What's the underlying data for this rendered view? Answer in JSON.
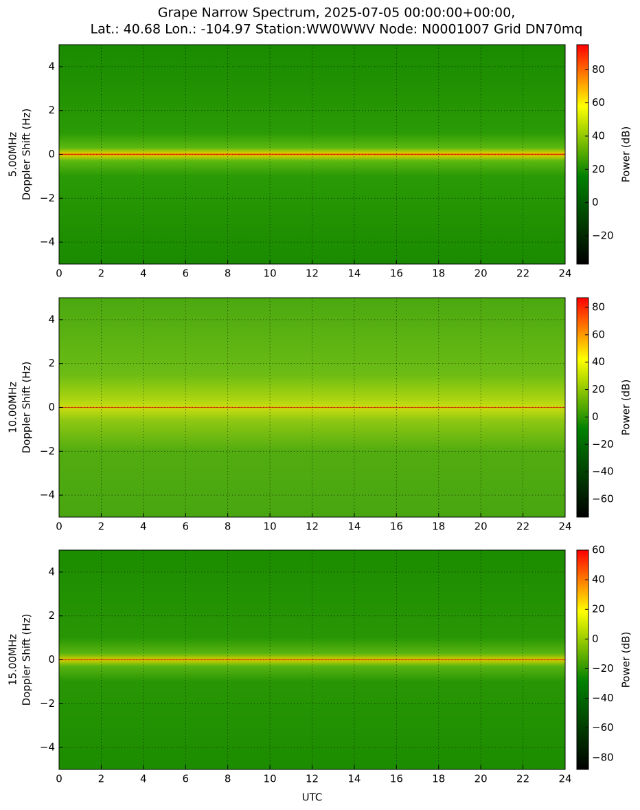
{
  "chart_data": [
    {
      "type": "heatmap",
      "title": [
        "Grape Narrow Spectrum, 2025-07-05 00:00:00+00:00,",
        "Lat.: 40.68 Lon.: -104.97 Station:WW0WWV Node: N0001007 Grid DN70mq"
      ],
      "ylabel": [
        "5.00MHz",
        "Doppler Shift (Hz)"
      ],
      "xlim": [
        0,
        24
      ],
      "xticks": [
        0,
        2,
        4,
        6,
        8,
        10,
        12,
        14,
        16,
        18,
        20,
        22,
        24
      ],
      "ylim": [
        -5,
        5
      ],
      "yticks": [
        {
          "value": -4,
          "label": "−4"
        },
        {
          "value": -2,
          "label": "−2"
        },
        0,
        2,
        4
      ],
      "grid": true,
      "colorbar_label": "Power (dB)",
      "clim": [
        -37,
        95
      ],
      "cticks": [
        {
          "value": -20,
          "label": "−20"
        },
        0,
        20,
        40,
        60,
        80
      ]
    },
    {
      "type": "heatmap",
      "ylabel": [
        "10.00MHz",
        "Doppler Shift (Hz)"
      ],
      "xlim": [
        0,
        24
      ],
      "xticks": [
        0,
        2,
        4,
        6,
        8,
        10,
        12,
        14,
        16,
        18,
        20,
        22,
        24
      ],
      "ylim": [
        -5,
        5
      ],
      "yticks": [
        {
          "value": -4,
          "label": "−4"
        },
        {
          "value": -2,
          "label": "−2"
        },
        0,
        2,
        4
      ],
      "grid": true,
      "colorbar_label": "Power (dB)",
      "clim": [
        -73,
        87
      ],
      "cticks": [
        {
          "value": -60,
          "label": "−60"
        },
        {
          "value": -40,
          "label": "−40"
        },
        {
          "value": -20,
          "label": "−20"
        },
        0,
        20,
        40,
        60,
        80
      ]
    },
    {
      "type": "heatmap",
      "ylabel": [
        "15.00MHz",
        "Doppler Shift (Hz)"
      ],
      "xlabel": "UTC",
      "xlim": [
        0,
        24
      ],
      "xticks": [
        0,
        2,
        4,
        6,
        8,
        10,
        12,
        14,
        16,
        18,
        20,
        22,
        24
      ],
      "ylim": [
        -5,
        5
      ],
      "yticks": [
        {
          "value": -4,
          "label": "−4"
        },
        {
          "value": -2,
          "label": "−2"
        },
        0,
        2,
        4
      ],
      "grid": true,
      "colorbar_label": "Power (dB)",
      "clim": [
        -88,
        60
      ],
      "cticks": [
        {
          "value": -80,
          "label": "−80"
        },
        {
          "value": -60,
          "label": "−60"
        },
        {
          "value": -40,
          "label": "−40"
        },
        {
          "value": -20,
          "label": "−20"
        },
        0,
        20,
        40,
        60
      ]
    }
  ]
}
